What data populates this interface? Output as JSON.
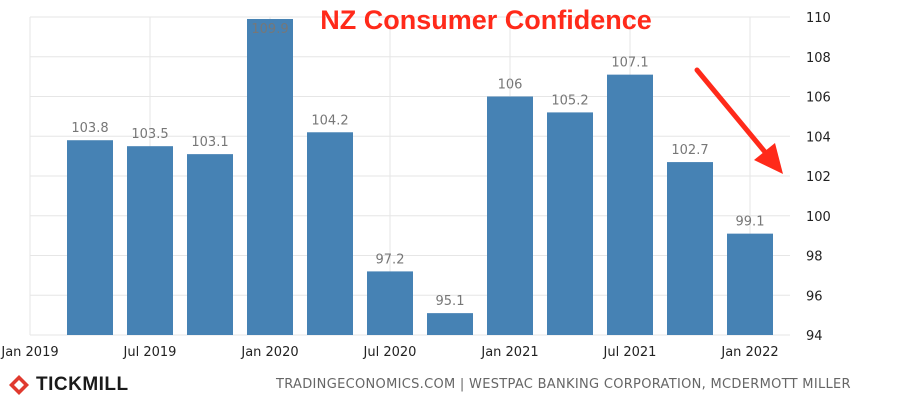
{
  "chart_data": {
    "type": "bar",
    "title": "NZ Consumer Confidence",
    "categories": [
      "Jan 2019",
      "Apr 2019",
      "Jul 2019",
      "Oct 2019",
      "Jan 2020",
      "Apr 2020",
      "Jul 2020",
      "Oct 2020",
      "Jan 2021",
      "Apr 2021",
      "Jul 2021",
      "Oct 2021",
      "Jan 2022"
    ],
    "series": [
      {
        "values": [
          null,
          103.8,
          103.5,
          103.1,
          109.9,
          104.2,
          97.2,
          95.1,
          106,
          105.2,
          107.1,
          102.7,
          99.1
        ],
        "labels": [
          "",
          "103.8",
          "103.5",
          "103.1",
          "109.9",
          "104.2",
          "97.2",
          "95.1",
          "106",
          "105.2",
          "107.1",
          "102.7",
          "99.1"
        ]
      }
    ],
    "x_tick_labels": [
      "Jan 2019",
      "Jul 2019",
      "Jan 2020",
      "Jul 2020",
      "Jan 2021",
      "Jul 2021",
      "Jan 2022"
    ],
    "x_tick_indices": [
      0,
      2,
      4,
      6,
      8,
      10,
      12
    ],
    "y_ticks": [
      "94",
      "96",
      "98",
      "100",
      "102",
      "104",
      "106",
      "108",
      "110"
    ],
    "ylim": [
      94,
      110
    ],
    "y_axis_position": "right",
    "grid": true,
    "colors": {
      "bar": "#4682b4",
      "title": "#ff2a1a",
      "arrow": "#ff2a1a",
      "label": "#777777",
      "grid": "#e6e6e6"
    },
    "annotation": "red downward arrow toward the latest bars"
  },
  "branding": {
    "logo_text": "TICKMILL",
    "logo_icon": "tickmill-logo-icon"
  },
  "source": "TRADINGECONOMICS.COM | WESTPAC BANKING CORPORATION, MCDERMOTT MILLER"
}
